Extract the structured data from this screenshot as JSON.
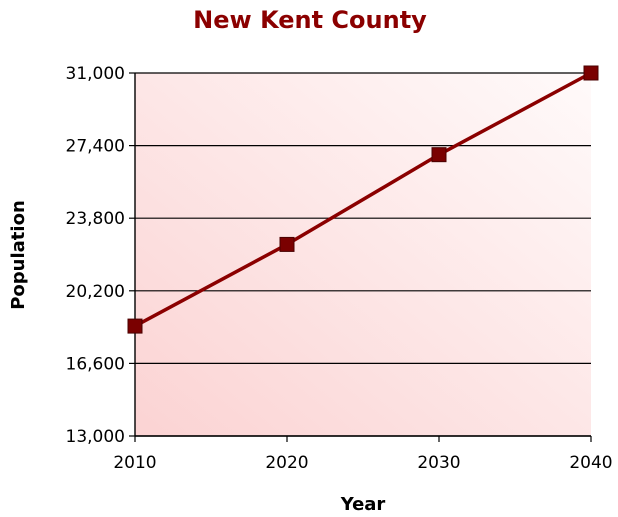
{
  "chart_data": {
    "type": "line",
    "title": "New Kent County",
    "xlabel": "Year",
    "ylabel": "Population",
    "categories": [
      "2010",
      "2020",
      "2030",
      "2040"
    ],
    "y_tick_labels": [
      "13,000",
      "16,600",
      "20,200",
      "23,800",
      "27,400",
      "31,000"
    ],
    "y_ticks": [
      13000,
      16600,
      20200,
      23800,
      27400,
      31000
    ],
    "ylim": [
      13000,
      31000
    ],
    "grid": true,
    "legend": "none",
    "series": [
      {
        "values": [
          18450,
          22500,
          26950,
          31000
        ]
      }
    ],
    "colors": {
      "title": "#8b0000",
      "line": "#8b0000",
      "marker_fill": "#7a0000",
      "plot_bg_light": "#fffafa",
      "plot_bg_dark": "#fbd3d3"
    }
  }
}
